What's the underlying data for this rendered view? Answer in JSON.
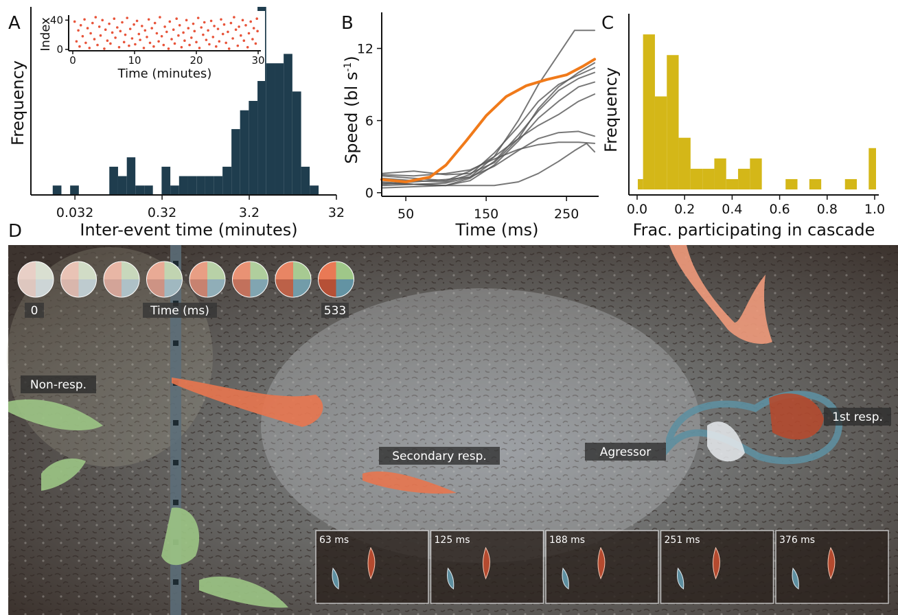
{
  "panels": {
    "A": {
      "letter": "A"
    },
    "B": {
      "letter": "B"
    },
    "C": {
      "letter": "C"
    },
    "D": {
      "letter": "D"
    }
  },
  "chart_data": [
    {
      "panel": "A",
      "type": "bar",
      "xlabel": "Inter-event time (minutes)",
      "ylabel": "Frequency",
      "x_scale": "log",
      "xlim": [
        0.01,
        32
      ],
      "ylim": [
        0,
        20
      ],
      "x_ticks": [
        {
          "value": 0.032,
          "label": "0.032"
        },
        {
          "value": 0.32,
          "label": "0.32"
        },
        {
          "value": 3.2,
          "label": "3.2"
        },
        {
          "value": 32,
          "label": "32"
        }
      ],
      "bar_color": "#1f3d4e",
      "bins": [
        {
          "x0": 0.0178,
          "x1": 0.0224,
          "count": 1
        },
        {
          "x0": 0.0282,
          "x1": 0.0355,
          "count": 1
        },
        {
          "x0": 0.0794,
          "x1": 0.1,
          "count": 3
        },
        {
          "x0": 0.1,
          "x1": 0.126,
          "count": 2
        },
        {
          "x0": 0.126,
          "x1": 0.158,
          "count": 4
        },
        {
          "x0": 0.158,
          "x1": 0.2,
          "count": 1
        },
        {
          "x0": 0.2,
          "x1": 0.251,
          "count": 1
        },
        {
          "x0": 0.316,
          "x1": 0.398,
          "count": 3
        },
        {
          "x0": 0.398,
          "x1": 0.501,
          "count": 1
        },
        {
          "x0": 0.501,
          "x1": 0.631,
          "count": 2
        },
        {
          "x0": 0.631,
          "x1": 0.794,
          "count": 2
        },
        {
          "x0": 0.794,
          "x1": 1.0,
          "count": 2
        },
        {
          "x0": 1.0,
          "x1": 1.26,
          "count": 2
        },
        {
          "x0": 1.26,
          "x1": 1.58,
          "count": 2
        },
        {
          "x0": 1.58,
          "x1": 2.0,
          "count": 3
        },
        {
          "x0": 2.0,
          "x1": 2.51,
          "count": 7
        },
        {
          "x0": 2.51,
          "x1": 3.16,
          "count": 9
        },
        {
          "x0": 3.16,
          "x1": 3.98,
          "count": 10
        },
        {
          "x0": 3.98,
          "x1": 5.01,
          "count": 20
        },
        {
          "x0": 5.01,
          "x1": 6.31,
          "count": 14
        },
        {
          "x0": 6.31,
          "x1": 7.94,
          "count": 14
        },
        {
          "x0": 7.94,
          "x1": 10.0,
          "count": 15
        },
        {
          "x0": 10.0,
          "x1": 12.6,
          "count": 11
        },
        {
          "x0": 12.6,
          "x1": 15.8,
          "count": 3
        },
        {
          "x0": 15.8,
          "x1": 20.0,
          "count": 1
        }
      ]
    },
    {
      "panel": "A-inset",
      "type": "scatter",
      "xlabel": "Time (minutes)",
      "ylabel": "Index",
      "xlim": [
        0,
        30
      ],
      "ylim": [
        0,
        45
      ],
      "x_ticks": [
        0,
        10,
        20,
        30
      ],
      "y_ticks": [
        0,
        40
      ],
      "point_color": "#e8543a",
      "points": [
        [
          0.3,
          38
        ],
        [
          0.6,
          11
        ],
        [
          0.9,
          26
        ],
        [
          1.1,
          4
        ],
        [
          1.3,
          33
        ],
        [
          1.6,
          18
        ],
        [
          1.9,
          41
        ],
        [
          2.1,
          9
        ],
        [
          2.4,
          29
        ],
        [
          2.7,
          2
        ],
        [
          2.9,
          22
        ],
        [
          3.2,
          36
        ],
        [
          3.5,
          14
        ],
        [
          3.7,
          44
        ],
        [
          4.0,
          6
        ],
        [
          4.3,
          31
        ],
        [
          4.5,
          19
        ],
        [
          4.8,
          40
        ],
        [
          5.1,
          1
        ],
        [
          5.3,
          27
        ],
        [
          5.6,
          12
        ],
        [
          5.9,
          35
        ],
        [
          6.1,
          8
        ],
        [
          6.4,
          23
        ],
        [
          6.7,
          42
        ],
        [
          6.9,
          16
        ],
        [
          7.2,
          30
        ],
        [
          7.5,
          3
        ],
        [
          7.7,
          25
        ],
        [
          8.0,
          37
        ],
        [
          8.3,
          10
        ],
        [
          8.5,
          20
        ],
        [
          8.8,
          43
        ],
        [
          9.1,
          5
        ],
        [
          9.3,
          28
        ],
        [
          9.6,
          15
        ],
        [
          9.9,
          34
        ],
        [
          10.1,
          7
        ],
        [
          10.4,
          39
        ],
        [
          10.7,
          21
        ],
        [
          10.9,
          13
        ],
        [
          11.2,
          32
        ],
        [
          11.5,
          2
        ],
        [
          11.7,
          26
        ],
        [
          12.0,
          17
        ],
        [
          12.3,
          41
        ],
        [
          12.5,
          9
        ],
        [
          12.8,
          29
        ],
        [
          13.1,
          4
        ],
        [
          13.3,
          36
        ],
        [
          13.6,
          22
        ],
        [
          13.9,
          11
        ],
        [
          14.1,
          44
        ],
        [
          14.4,
          18
        ],
        [
          14.7,
          6
        ],
        [
          14.9,
          31
        ],
        [
          15.2,
          24
        ],
        [
          15.5,
          1
        ],
        [
          15.7,
          38
        ],
        [
          16.0,
          14
        ],
        [
          16.3,
          27
        ],
        [
          16.5,
          8
        ],
        [
          16.8,
          42
        ],
        [
          17.1,
          19
        ],
        [
          17.3,
          33
        ],
        [
          17.6,
          3
        ],
        [
          17.9,
          23
        ],
        [
          18.1,
          12
        ],
        [
          18.4,
          40
        ],
        [
          18.7,
          29
        ],
        [
          18.9,
          6
        ],
        [
          19.2,
          16
        ],
        [
          19.5,
          35
        ],
        [
          19.7,
          25
        ],
        [
          20.0,
          10
        ],
        [
          20.3,
          43
        ],
        [
          20.5,
          2
        ],
        [
          20.8,
          30
        ],
        [
          21.1,
          20
        ],
        [
          21.3,
          37
        ],
        [
          21.6,
          13
        ],
        [
          21.9,
          26
        ],
        [
          22.1,
          7
        ],
        [
          22.4,
          39
        ],
        [
          22.7,
          17
        ],
        [
          22.9,
          32
        ],
        [
          23.2,
          4
        ],
        [
          23.5,
          28
        ],
        [
          23.7,
          11
        ],
        [
          24.0,
          41
        ],
        [
          24.3,
          21
        ],
        [
          24.5,
          34
        ],
        [
          24.8,
          9
        ],
        [
          25.1,
          24
        ],
        [
          25.3,
          1
        ],
        [
          25.6,
          36
        ],
        [
          25.9,
          15
        ],
        [
          26.1,
          44
        ],
        [
          26.4,
          27
        ],
        [
          26.7,
          5
        ],
        [
          26.9,
          31
        ],
        [
          27.2,
          19
        ],
        [
          27.5,
          40
        ],
        [
          27.7,
          12
        ],
        [
          28.0,
          33
        ],
        [
          28.3,
          3
        ],
        [
          28.5,
          22
        ],
        [
          28.8,
          38
        ],
        [
          29.1,
          14
        ],
        [
          29.3,
          29
        ],
        [
          29.6,
          8
        ],
        [
          29.8,
          42
        ],
        [
          29.9,
          25
        ]
      ]
    },
    {
      "panel": "B",
      "type": "line",
      "xlabel": "Time (ms)",
      "ylabel": "Speed (bl s",
      "ylabel_sup": "-1",
      "ylabel_close": ")",
      "xlim": [
        20,
        290
      ],
      "ylim": [
        -0.3,
        15
      ],
      "x_ticks": [
        50,
        150,
        250
      ],
      "y_ticks": [
        0,
        6,
        12
      ],
      "highlight_color": "#f07a1a",
      "other_color": "#555555",
      "series": [
        {
          "highlight": true,
          "x": [
            20,
            50,
            80,
            100,
            125,
            150,
            175,
            200,
            225,
            250,
            270,
            285
          ],
          "y": [
            1.1,
            0.9,
            1.3,
            2.3,
            4.3,
            6.4,
            8.0,
            8.9,
            9.4,
            9.8,
            10.5,
            11.1
          ]
        },
        {
          "highlight": false,
          "x": [
            20,
            60,
            100,
            130,
            160,
            190,
            215,
            240,
            260,
            285
          ],
          "y": [
            0.6,
            0.7,
            0.8,
            1.3,
            3.0,
            6.0,
            9.0,
            11.5,
            13.5,
            13.5
          ]
        },
        {
          "highlight": false,
          "x": [
            20,
            60,
            100,
            130,
            160,
            190,
            215,
            240,
            265,
            285
          ],
          "y": [
            1.6,
            1.8,
            1.5,
            1.6,
            2.5,
            4.5,
            7.0,
            8.8,
            10.0,
            10.8
          ]
        },
        {
          "highlight": false,
          "x": [
            20,
            60,
            100,
            130,
            160,
            190,
            215,
            240,
            265,
            285
          ],
          "y": [
            1.2,
            1.0,
            0.9,
            1.5,
            3.3,
            5.5,
            7.6,
            9.0,
            9.8,
            10.4
          ]
        },
        {
          "highlight": false,
          "x": [
            20,
            60,
            100,
            130,
            160,
            190,
            215,
            240,
            265,
            285
          ],
          "y": [
            0.9,
            0.7,
            0.6,
            1.2,
            2.6,
            4.8,
            6.8,
            8.5,
            9.5,
            10.0
          ]
        },
        {
          "highlight": false,
          "x": [
            20,
            60,
            100,
            130,
            160,
            190,
            215,
            240,
            265,
            285
          ],
          "y": [
            0.4,
            0.5,
            0.6,
            1.0,
            2.3,
            4.3,
            6.2,
            7.6,
            8.8,
            9.2
          ]
        },
        {
          "highlight": false,
          "x": [
            20,
            60,
            100,
            130,
            160,
            190,
            215,
            240,
            265,
            285
          ],
          "y": [
            1.4,
            1.2,
            1.0,
            1.8,
            3.0,
            4.5,
            5.6,
            6.5,
            7.6,
            8.2
          ]
        },
        {
          "highlight": false,
          "x": [
            20,
            60,
            100,
            130,
            160,
            190,
            215,
            240,
            265,
            285
          ],
          "y": [
            0.7,
            0.9,
            1.1,
            1.3,
            2.2,
            3.5,
            4.5,
            5.0,
            5.1,
            4.7
          ]
        },
        {
          "highlight": false,
          "x": [
            20,
            60,
            100,
            130,
            160,
            190,
            215,
            240,
            265,
            285
          ],
          "y": [
            1.5,
            1.4,
            1.6,
            1.9,
            2.8,
            3.6,
            4.0,
            4.2,
            4.2,
            4.1
          ]
        },
        {
          "highlight": false,
          "x": [
            20,
            60,
            100,
            130,
            160,
            190,
            215,
            240,
            260,
            275,
            285
          ],
          "y": [
            0.8,
            0.7,
            0.6,
            0.6,
            0.6,
            0.9,
            1.6,
            2.6,
            3.5,
            4.1,
            3.4
          ]
        }
      ]
    },
    {
      "panel": "C",
      "type": "bar",
      "xlabel": "Frac. participating in cascade",
      "ylabel": "Frequency",
      "xlim": [
        0,
        1.0
      ],
      "ylim": [
        0,
        17
      ],
      "x_ticks": [
        {
          "value": 0.0,
          "label": "0.0"
        },
        {
          "value": 0.2,
          "label": "0.2"
        },
        {
          "value": 0.4,
          "label": "0.4"
        },
        {
          "value": 0.6,
          "label": "0.6"
        },
        {
          "value": 0.8,
          "label": "0.8"
        },
        {
          "value": 1.0,
          "label": "1.0"
        }
      ],
      "bar_color": "#d4b718",
      "bin_width": 0.05,
      "bin_start": 0.0,
      "counts": [
        1,
        15,
        9,
        13,
        5,
        2,
        2,
        3,
        1,
        2,
        3,
        0,
        0,
        1,
        0,
        1,
        0,
        0,
        1,
        0,
        4
      ]
    }
  ],
  "panel_d": {
    "time_start_label": "0",
    "time_mid_label": "Time (ms)",
    "time_end_label": "533",
    "labels": {
      "non_resp": "Non-resp.",
      "secondary_resp": "Secondary resp.",
      "agressor": "Agressor",
      "first_resp": "1st resp."
    },
    "frames": [
      "63 ms",
      "125 ms",
      "188 ms",
      "251 ms",
      "376 ms"
    ],
    "colors": {
      "responder": "#e8754f",
      "responder_dark": "#b44a2f",
      "non_responder": "#9cc585",
      "agressor": "#5e8fa0"
    }
  }
}
